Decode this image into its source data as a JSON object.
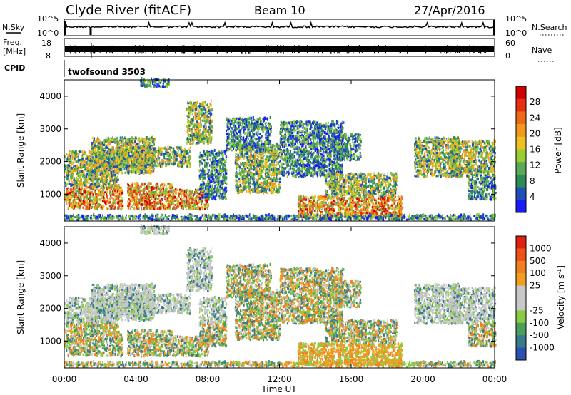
{
  "header": {
    "station": "Clyde River (fitACF)",
    "beam": "Beam 10",
    "date": "27/Apr/2016"
  },
  "chart_data": [
    {
      "type": "line",
      "panel": "noise",
      "left_label": "N.Sky",
      "right_label": "N.Search",
      "left_ticks": [
        "10^5",
        "10^0"
      ],
      "right_ticks": [
        "10^5",
        "10^0"
      ],
      "ylim_log": [
        0,
        5
      ]
    },
    {
      "type": "line",
      "panel": "frequency",
      "left_label_top": "Freq.",
      "left_label_bottom": "[MHz]",
      "right_label": "Nave",
      "left_ticks": [
        18,
        8
      ],
      "right_ticks": [
        60,
        0
      ],
      "ylim": [
        8,
        18
      ],
      "y2lim": [
        0,
        60
      ]
    },
    {
      "type": "table",
      "panel": "cpid",
      "left_label": "CPID",
      "text": "twofsound 3503"
    },
    {
      "type": "heatmap",
      "panel": "power",
      "ylabel": "Slant Range [km]",
      "yticks": [
        1000,
        2000,
        3000,
        4000
      ],
      "ylim": [
        180,
        4500
      ],
      "colorbar_label": "Power [dB]",
      "colorbar_ticks": [
        4,
        8,
        12,
        16,
        20,
        24,
        28
      ],
      "colorbar_colors": [
        "#1a1aff",
        "#1f4fb8",
        "#2e8b57",
        "#5aaa5a",
        "#9acd32",
        "#f0c020",
        "#f39a1e",
        "#ef6a14",
        "#e83010",
        "#d40000"
      ]
    },
    {
      "type": "heatmap",
      "panel": "velocity",
      "ylabel": "Slant Range [km]",
      "yticks": [
        1000,
        2000,
        3000,
        4000
      ],
      "ylim": [
        180,
        4500
      ],
      "xlabel": "Time UT",
      "xticks": [
        "00:00",
        "04:00",
        "08:00",
        "12:00",
        "16:00",
        "20:00",
        "00:00"
      ],
      "xlim_hours": [
        0,
        24
      ],
      "colorbar_label": "Velocity [m s^-1]",
      "colorbar_ticks": [
        "1000",
        "500",
        "100",
        "25",
        "-25",
        "-100",
        "-500",
        "-1000"
      ],
      "colorbar_colors": [
        "#2a50b0",
        "#3a7a8c",
        "#4aa05a",
        "#88cc44",
        "#c8c8c8",
        "#c8c8c8",
        "#f0a020",
        "#f08020",
        "#ee5018",
        "#e02010"
      ]
    }
  ]
}
